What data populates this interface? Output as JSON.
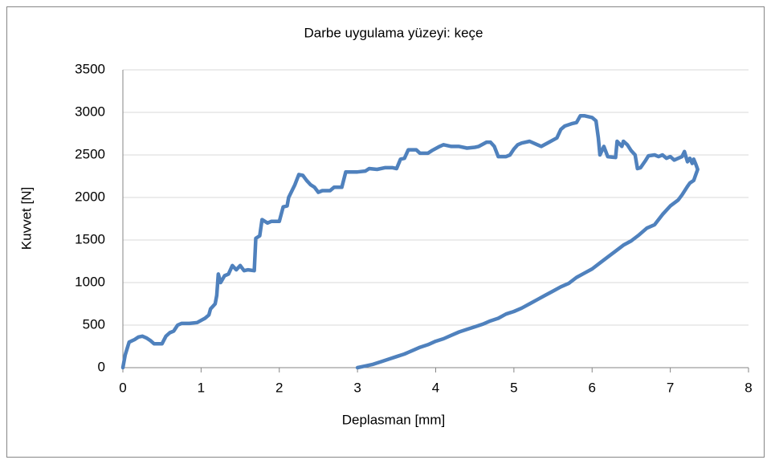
{
  "chart_data": {
    "type": "line",
    "title": "Darbe uygulama yüzeyi: keçe",
    "x_label": "Deplasman [mm]",
    "y_label": "Kuvvet [N]",
    "series": [
      {
        "name": "Kuvvet",
        "color": "#4f81bd",
        "x": [
          0,
          0.03,
          0.08,
          0.15,
          0.2,
          0.25,
          0.3,
          0.35,
          0.4,
          0.5,
          0.55,
          0.6,
          0.65,
          0.7,
          0.75,
          0.85,
          0.95,
          1.05,
          1.1,
          1.12,
          1.18,
          1.2,
          1.22,
          1.25,
          1.3,
          1.35,
          1.4,
          1.45,
          1.5,
          1.55,
          1.6,
          1.68,
          1.7,
          1.75,
          1.78,
          1.85,
          1.9,
          2.0,
          2.05,
          2.1,
          2.12,
          2.2,
          2.25,
          2.3,
          2.35,
          2.4,
          2.45,
          2.5,
          2.55,
          2.65,
          2.7,
          2.8,
          2.85,
          3.0,
          3.1,
          3.15,
          3.25,
          3.35,
          3.45,
          3.5,
          3.55,
          3.6,
          3.65,
          3.75,
          3.8,
          3.9,
          3.95,
          4.05,
          4.1,
          4.2,
          4.3,
          4.4,
          4.5,
          4.55,
          4.65,
          4.7,
          4.75,
          4.8,
          4.9,
          4.95,
          5.0,
          5.05,
          5.1,
          5.2,
          5.3,
          5.35,
          5.45,
          5.55,
          5.6,
          5.65,
          5.75,
          5.8,
          5.85,
          5.9,
          6.0,
          6.05,
          6.08,
          6.1,
          6.15,
          6.2,
          6.3,
          6.32,
          6.38,
          6.4,
          6.45,
          6.5,
          6.55,
          6.58,
          6.62,
          6.68,
          6.72,
          6.8,
          6.85,
          6.9,
          6.95,
          7.0,
          7.05,
          7.1,
          7.15,
          7.18,
          7.22,
          7.25,
          7.28,
          7.3,
          7.33,
          7.35,
          7.33,
          7.3,
          7.25,
          7.22,
          7.15,
          7.1,
          7.0,
          6.9,
          6.8,
          6.7,
          6.6,
          6.5,
          6.4,
          6.3,
          6.2,
          6.1,
          6.0,
          5.9,
          5.8,
          5.7,
          5.6,
          5.5,
          5.4,
          5.3,
          5.2,
          5.1,
          5.0,
          4.9,
          4.8,
          4.7,
          4.6,
          4.5,
          4.4,
          4.3,
          4.2,
          4.1,
          4.0,
          3.9,
          3.8,
          3.7,
          3.6,
          3.5,
          3.4,
          3.3,
          3.2,
          3.1,
          3.0
        ],
        "values": [
          0,
          150,
          300,
          330,
          360,
          370,
          350,
          320,
          280,
          280,
          370,
          410,
          430,
          500,
          520,
          520,
          530,
          580,
          620,
          690,
          750,
          850,
          1100,
          1000,
          1080,
          1100,
          1200,
          1150,
          1200,
          1140,
          1150,
          1140,
          1520,
          1550,
          1740,
          1700,
          1720,
          1720,
          1890,
          1900,
          2000,
          2150,
          2270,
          2260,
          2200,
          2150,
          2120,
          2060,
          2080,
          2080,
          2120,
          2120,
          2300,
          2300,
          2310,
          2340,
          2330,
          2350,
          2350,
          2340,
          2450,
          2460,
          2560,
          2560,
          2520,
          2520,
          2550,
          2600,
          2620,
          2600,
          2600,
          2580,
          2590,
          2600,
          2650,
          2650,
          2600,
          2480,
          2480,
          2500,
          2570,
          2620,
          2640,
          2660,
          2620,
          2600,
          2650,
          2700,
          2800,
          2840,
          2870,
          2880,
          2960,
          2960,
          2940,
          2900,
          2700,
          2500,
          2600,
          2480,
          2470,
          2660,
          2600,
          2660,
          2620,
          2550,
          2500,
          2340,
          2350,
          2430,
          2490,
          2500,
          2480,
          2500,
          2460,
          2480,
          2440,
          2460,
          2480,
          2540,
          2420,
          2460,
          2400,
          2450,
          2380,
          2330,
          2280,
          2200,
          2170,
          2130,
          2030,
          1970,
          1900,
          1800,
          1680,
          1640,
          1560,
          1490,
          1440,
          1370,
          1300,
          1230,
          1160,
          1110,
          1060,
          990,
          950,
          900,
          850,
          800,
          750,
          700,
          660,
          630,
          580,
          550,
          510,
          480,
          450,
          420,
          380,
          340,
          310,
          270,
          240,
          200,
          160,
          130,
          100,
          70,
          40,
          20,
          0
        ]
      }
    ],
    "xlim": [
      0,
      8
    ],
    "xticks": [
      0,
      1,
      2,
      3,
      4,
      5,
      6,
      7,
      8
    ],
    "ylim": [
      0,
      3500
    ],
    "yticks": [
      0,
      500,
      1000,
      1500,
      2000,
      2500,
      3000,
      3500
    ],
    "grid": true
  }
}
